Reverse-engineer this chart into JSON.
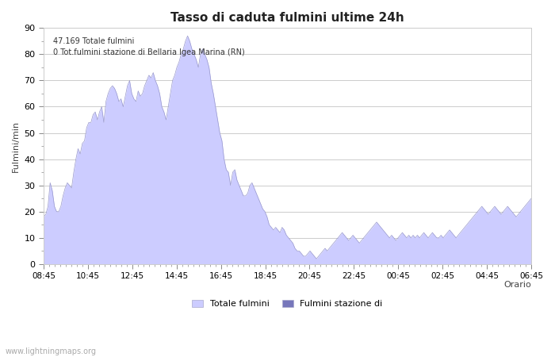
{
  "title": "Tasso di caduta fulmini ultime 24h",
  "xlabel": "Orario",
  "ylabel": "Fulmini/min",
  "annotation_line1": "47.169 Totale fulmini",
  "annotation_line2": "0 Tot.fulmini stazione di Bellaria Igea Marina (RN)",
  "legend_label1": "Totale fulmini",
  "legend_label2": "Fulmini stazione di",
  "watermark": "www.lightningmaps.org",
  "fill_color": "#ccccff",
  "fill_color2": "#7777bb",
  "line_color": "#9999cc",
  "bg_color": "#ffffff",
  "ylim": [
    0,
    90
  ],
  "yticks": [
    0,
    10,
    20,
    30,
    40,
    50,
    60,
    70,
    80,
    90
  ],
  "xtick_labels": [
    "08:45",
    "10:45",
    "12:45",
    "14:45",
    "16:45",
    "18:45",
    "20:45",
    "22:45",
    "00:45",
    "02:45",
    "04:45",
    "06:45"
  ],
  "y_values": [
    18,
    19,
    22,
    31,
    28,
    22,
    20,
    20,
    22,
    26,
    29,
    31,
    30,
    29,
    35,
    40,
    44,
    42,
    46,
    47,
    52,
    54,
    54,
    57,
    58,
    55,
    58,
    60,
    54,
    62,
    65,
    67,
    68,
    67,
    65,
    62,
    63,
    60,
    64,
    68,
    70,
    65,
    63,
    62,
    66,
    64,
    65,
    68,
    70,
    72,
    71,
    73,
    70,
    68,
    65,
    60,
    58,
    55,
    60,
    65,
    70,
    72,
    75,
    77,
    80,
    82,
    85,
    87,
    85,
    82,
    80,
    78,
    75,
    80,
    82,
    80,
    78,
    75,
    69,
    65,
    60,
    55,
    50,
    47,
    40,
    36,
    35,
    30,
    35,
    36,
    32,
    30,
    28,
    26,
    26,
    27,
    30,
    31,
    29,
    27,
    25,
    23,
    21,
    20,
    18,
    15,
    14,
    13,
    14,
    13,
    12,
    14,
    13,
    11,
    10,
    9,
    8,
    6,
    5,
    5,
    4,
    3,
    3,
    4,
    5,
    4,
    3,
    2,
    3,
    4,
    5,
    6,
    5,
    6,
    7,
    8,
    9,
    10,
    11,
    12,
    11,
    10,
    9,
    10,
    11,
    10,
    9,
    8,
    9,
    10,
    11,
    12,
    13,
    14,
    15,
    16,
    15,
    14,
    13,
    12,
    11,
    10,
    11,
    10,
    9,
    10,
    11,
    12,
    11,
    10,
    11,
    10,
    11,
    10,
    11,
    10,
    11,
    12,
    11,
    10,
    11,
    12,
    11,
    10,
    10,
    11,
    10,
    11,
    12,
    13,
    12,
    11,
    10,
    11,
    12,
    13,
    14,
    15,
    16,
    17,
    18,
    19,
    20,
    21,
    22,
    21,
    20,
    19,
    20,
    21,
    22,
    21,
    20,
    19,
    20,
    21,
    22,
    21,
    20,
    19,
    18,
    19,
    20,
    21,
    22,
    23,
    24,
    25
  ]
}
